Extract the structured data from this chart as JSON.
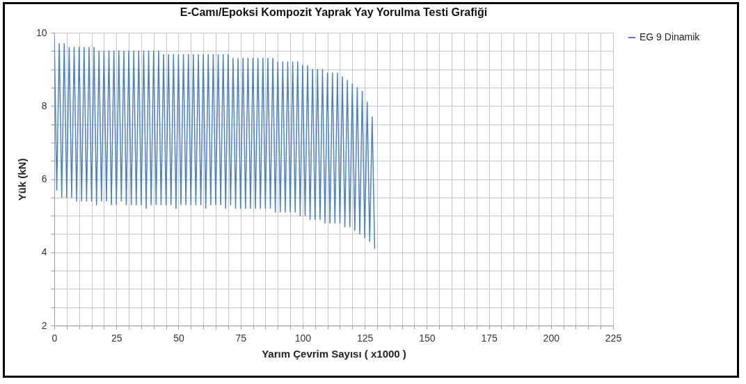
{
  "chart_data": {
    "type": "line",
    "title": "E-Camı/Epoksi Kompozit Yaprak Yay Yorulma Testi Grafiği",
    "xlabel": "Yarım Çevrim Sayısı ( x1000 )",
    "ylabel": "Yük (kN)",
    "x": [
      0,
      1,
      2,
      3,
      4,
      5,
      6,
      7,
      8,
      9,
      10,
      11,
      12,
      13,
      14,
      15,
      16,
      17,
      18,
      19,
      20,
      21,
      22,
      23,
      24,
      25,
      26,
      27,
      28,
      29,
      30,
      31,
      32,
      33,
      34,
      35,
      36,
      37,
      38,
      39,
      40,
      41,
      42,
      43,
      44,
      45,
      46,
      47,
      48,
      49,
      50,
      51,
      52,
      53,
      54,
      55,
      56,
      57,
      58,
      59,
      60,
      61,
      62,
      63,
      64,
      65,
      66,
      67,
      68,
      69,
      70,
      71,
      72,
      73,
      74,
      75,
      76,
      77,
      78,
      79,
      80,
      81,
      82,
      83,
      84,
      85,
      86,
      87,
      88,
      89,
      90,
      91,
      92,
      93,
      94,
      95,
      96,
      97,
      98,
      99,
      100,
      101,
      102,
      103,
      104,
      105,
      106,
      107,
      108,
      109,
      110,
      111,
      112,
      113,
      114,
      115,
      116,
      117,
      118,
      119,
      120,
      121,
      122,
      123,
      124,
      125,
      126,
      127,
      128,
      129
    ],
    "series": [
      {
        "name": "EG 9 Dinamik",
        "color": "#4f81bd",
        "values": [
          9.9,
          5.7,
          9.7,
          5.5,
          9.7,
          5.5,
          9.6,
          5.5,
          9.6,
          5.4,
          9.6,
          5.4,
          9.6,
          5.4,
          9.6,
          5.4,
          9.6,
          5.3,
          9.5,
          5.4,
          9.5,
          5.4,
          9.5,
          5.3,
          9.5,
          5.3,
          9.5,
          5.4,
          9.5,
          5.3,
          9.5,
          5.3,
          9.5,
          5.3,
          9.5,
          5.3,
          9.5,
          5.2,
          9.5,
          5.3,
          9.5,
          5.3,
          9.5,
          5.3,
          9.4,
          5.3,
          9.4,
          5.3,
          9.4,
          5.2,
          9.4,
          5.3,
          9.4,
          5.3,
          9.4,
          5.3,
          9.4,
          5.3,
          9.4,
          5.3,
          9.4,
          5.2,
          9.4,
          5.3,
          9.4,
          5.3,
          9.4,
          5.3,
          9.4,
          5.2,
          9.4,
          5.3,
          9.3,
          5.2,
          9.3,
          5.2,
          9.3,
          5.2,
          9.3,
          5.2,
          9.3,
          5.2,
          9.3,
          5.2,
          9.3,
          5.2,
          9.3,
          5.2,
          9.3,
          5.1,
          9.2,
          5.1,
          9.2,
          5.1,
          9.2,
          5.1,
          9.2,
          5.1,
          9.2,
          5.0,
          9.1,
          5.0,
          9.1,
          4.9,
          9.0,
          4.9,
          9.0,
          4.9,
          9.0,
          4.8,
          8.9,
          4.8,
          8.9,
          4.8,
          8.9,
          4.8,
          8.8,
          4.7,
          8.7,
          4.7,
          8.6,
          4.6,
          8.5,
          4.5,
          8.4,
          4.4,
          8.1,
          4.3,
          7.7,
          4.1
        ]
      }
    ],
    "xlim": [
      0,
      225
    ],
    "xticks": [
      0,
      {
        "value": 5,
        "label": null
      },
      {
        "value": 10,
        "label": null
      },
      {
        "value": 15,
        "label": null
      },
      {
        "value": 20,
        "label": null
      },
      25,
      {
        "value": 30,
        "label": null
      },
      {
        "value": 35,
        "label": null
      },
      {
        "value": 40,
        "label": null
      },
      {
        "value": 45,
        "label": null
      },
      50,
      {
        "value": 55,
        "label": null
      },
      {
        "value": 60,
        "label": null
      },
      {
        "value": 65,
        "label": null
      },
      {
        "value": 70,
        "label": null
      },
      75,
      {
        "value": 80,
        "label": null
      },
      {
        "value": 85,
        "label": null
      },
      {
        "value": 90,
        "label": null
      },
      {
        "value": 95,
        "label": null
      },
      100,
      {
        "value": 105,
        "label": null
      },
      {
        "value": 110,
        "label": null
      },
      {
        "value": 115,
        "label": null
      },
      {
        "value": 120,
        "label": null
      },
      125,
      {
        "value": 130,
        "label": null
      },
      {
        "value": 135,
        "label": null
      },
      {
        "value": 140,
        "label": null
      },
      {
        "value": 145,
        "label": null
      },
      150,
      {
        "value": 155,
        "label": null
      },
      {
        "value": 160,
        "label": null
      },
      {
        "value": 165,
        "label": null
      },
      {
        "value": 170,
        "label": null
      },
      175,
      {
        "value": 180,
        "label": null
      },
      {
        "value": 185,
        "label": null
      },
      {
        "value": 190,
        "label": null
      },
      {
        "value": 195,
        "label": null
      },
      200,
      {
        "value": 205,
        "label": null
      },
      {
        "value": 210,
        "label": null
      },
      {
        "value": 215,
        "label": null
      },
      {
        "value": 220,
        "label": null
      },
      225
    ],
    "ylim": [
      2,
      10
    ],
    "yticks": [
      2,
      {
        "value": 2.5,
        "label": null
      },
      {
        "value": 3,
        "label": null
      },
      {
        "value": 3.5,
        "label": null
      },
      4,
      {
        "value": 4.5,
        "label": null
      },
      {
        "value": 5,
        "label": null
      },
      {
        "value": 5.5,
        "label": null
      },
      6,
      {
        "value": 6.5,
        "label": null
      },
      {
        "value": 7,
        "label": null
      },
      {
        "value": 7.5,
        "label": null
      },
      8,
      {
        "value": 8.5,
        "label": null
      },
      {
        "value": 9,
        "label": null
      },
      {
        "value": 9.5,
        "label": null
      },
      10
    ],
    "grid": true,
    "legend": "right",
    "line_style": "solid"
  }
}
